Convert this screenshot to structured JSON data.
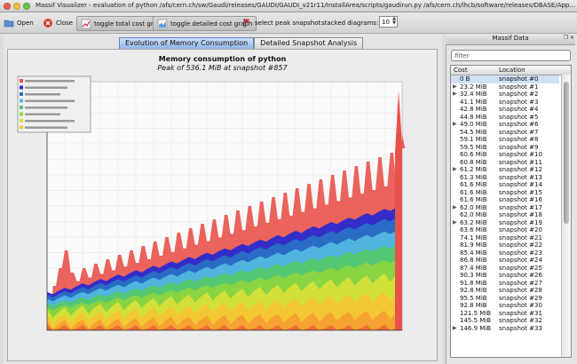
{
  "window": {
    "title": "Massif Visualizer - evaluation of python /afs/cern.ch/sw/Gaudi/releases/GAUDI/GAUDI_v21r11/InstallArea/scripts/gaudirun.py /afs/cern.ch/lhcb/software/releases/DBASE/App..."
  },
  "toolbar": {
    "open": "Open",
    "close": "Close",
    "toggle_total": "toggle total cost graph",
    "toggle_detailed": "toggle detailed cost graph",
    "select_peak": "select peak snapshot",
    "stacked_label": "stacked diagrams:",
    "stacked_value": "10"
  },
  "tabs": [
    "Evolution of Memory Consumption",
    "Detailed Snapshot Analysis"
  ],
  "graph": {
    "title": "Memory consumption of python",
    "subtitle": "Peak of 536.1 MiB at snapshot #857"
  },
  "chart_data": {
    "type": "area",
    "title": "Memory consumption of python",
    "subtitle": "Peak of 536.1 MiB at snapshot #857",
    "series": [
      {
        "name": "Total Memory Heap Consumption",
        "color": "#e8524a"
      },
      {
        "color": "#2a2ad0"
      },
      {
        "color": "#2a70c4"
      },
      {
        "color": "#52b8e0"
      },
      {
        "color": "#54c96c"
      },
      {
        "color": "#8cd540"
      },
      {
        "color": "#d6e23a"
      },
      {
        "color": "#f5c535"
      },
      {
        "color": "#f4a030"
      },
      {
        "color": "#ee6a3a"
      }
    ]
  },
  "dock": {
    "title": "Massif Data",
    "filter_placeholder": "filter",
    "columns": [
      "Cost",
      "Location"
    ],
    "rows": [
      {
        "cost": "0 B",
        "loc": "snapshot #0",
        "expand": false
      },
      {
        "cost": "23.2 MiB",
        "loc": "snapshot #1",
        "expand": true
      },
      {
        "cost": "32.4 MiB",
        "loc": "snapshot #2",
        "expand": true
      },
      {
        "cost": "41.1 MiB",
        "loc": "snapshot #3",
        "expand": false
      },
      {
        "cost": "42.8 MiB",
        "loc": "snapshot #4",
        "expand": false
      },
      {
        "cost": "44.8 MiB",
        "loc": "snapshot #5",
        "expand": false
      },
      {
        "cost": "49.0 MiB",
        "loc": "snapshot #6",
        "expand": true
      },
      {
        "cost": "54.5 MiB",
        "loc": "snapshot #7",
        "expand": false
      },
      {
        "cost": "59.1 MiB",
        "loc": "snapshot #8",
        "expand": false
      },
      {
        "cost": "59.5 MiB",
        "loc": "snapshot #9",
        "expand": false
      },
      {
        "cost": "60.6 MiB",
        "loc": "snapshot #10",
        "expand": false
      },
      {
        "cost": "60.8 MiB",
        "loc": "snapshot #11",
        "expand": false
      },
      {
        "cost": "61.2 MiB",
        "loc": "snapshot #12",
        "expand": true
      },
      {
        "cost": "61.3 MiB",
        "loc": "snapshot #13",
        "expand": false
      },
      {
        "cost": "61.6 MiB",
        "loc": "snapshot #14",
        "expand": false
      },
      {
        "cost": "61.6 MiB",
        "loc": "snapshot #15",
        "expand": false
      },
      {
        "cost": "61.6 MiB",
        "loc": "snapshot #16",
        "expand": false
      },
      {
        "cost": "62.0 MiB",
        "loc": "snapshot #17",
        "expand": true
      },
      {
        "cost": "62.0 MiB",
        "loc": "snapshot #18",
        "expand": false
      },
      {
        "cost": "63.2 MiB",
        "loc": "snapshot #19",
        "expand": true
      },
      {
        "cost": "63.6 MiB",
        "loc": "snapshot #20",
        "expand": false
      },
      {
        "cost": "74.1 MiB",
        "loc": "snapshot #21",
        "expand": false
      },
      {
        "cost": "81.9 MiB",
        "loc": "snapshot #22",
        "expand": false
      },
      {
        "cost": "85.4 MiB",
        "loc": "snapshot #23",
        "expand": false
      },
      {
        "cost": "86.8 MiB",
        "loc": "snapshot #24",
        "expand": false
      },
      {
        "cost": "87.4 MiB",
        "loc": "snapshot #25",
        "expand": false
      },
      {
        "cost": "90.3 MiB",
        "loc": "snapshot #26",
        "expand": false
      },
      {
        "cost": "91.8 MiB",
        "loc": "snapshot #27",
        "expand": false
      },
      {
        "cost": "92.8 MiB",
        "loc": "snapshot #28",
        "expand": false
      },
      {
        "cost": "95.5 MiB",
        "loc": "snapshot #29",
        "expand": false
      },
      {
        "cost": "92.8 MiB",
        "loc": "snapshot #30",
        "expand": false
      },
      {
        "cost": "121.5 MiB",
        "loc": "snapshot #31",
        "expand": false
      },
      {
        "cost": "145.5 MiB",
        "loc": "snapshot #32",
        "expand": false
      },
      {
        "cost": "146.9 MiB",
        "loc": "snapshot #33",
        "expand": true
      }
    ]
  },
  "colors": {
    "selected_row": "#cfe0f5",
    "active_tab": "#8fb4ea"
  }
}
